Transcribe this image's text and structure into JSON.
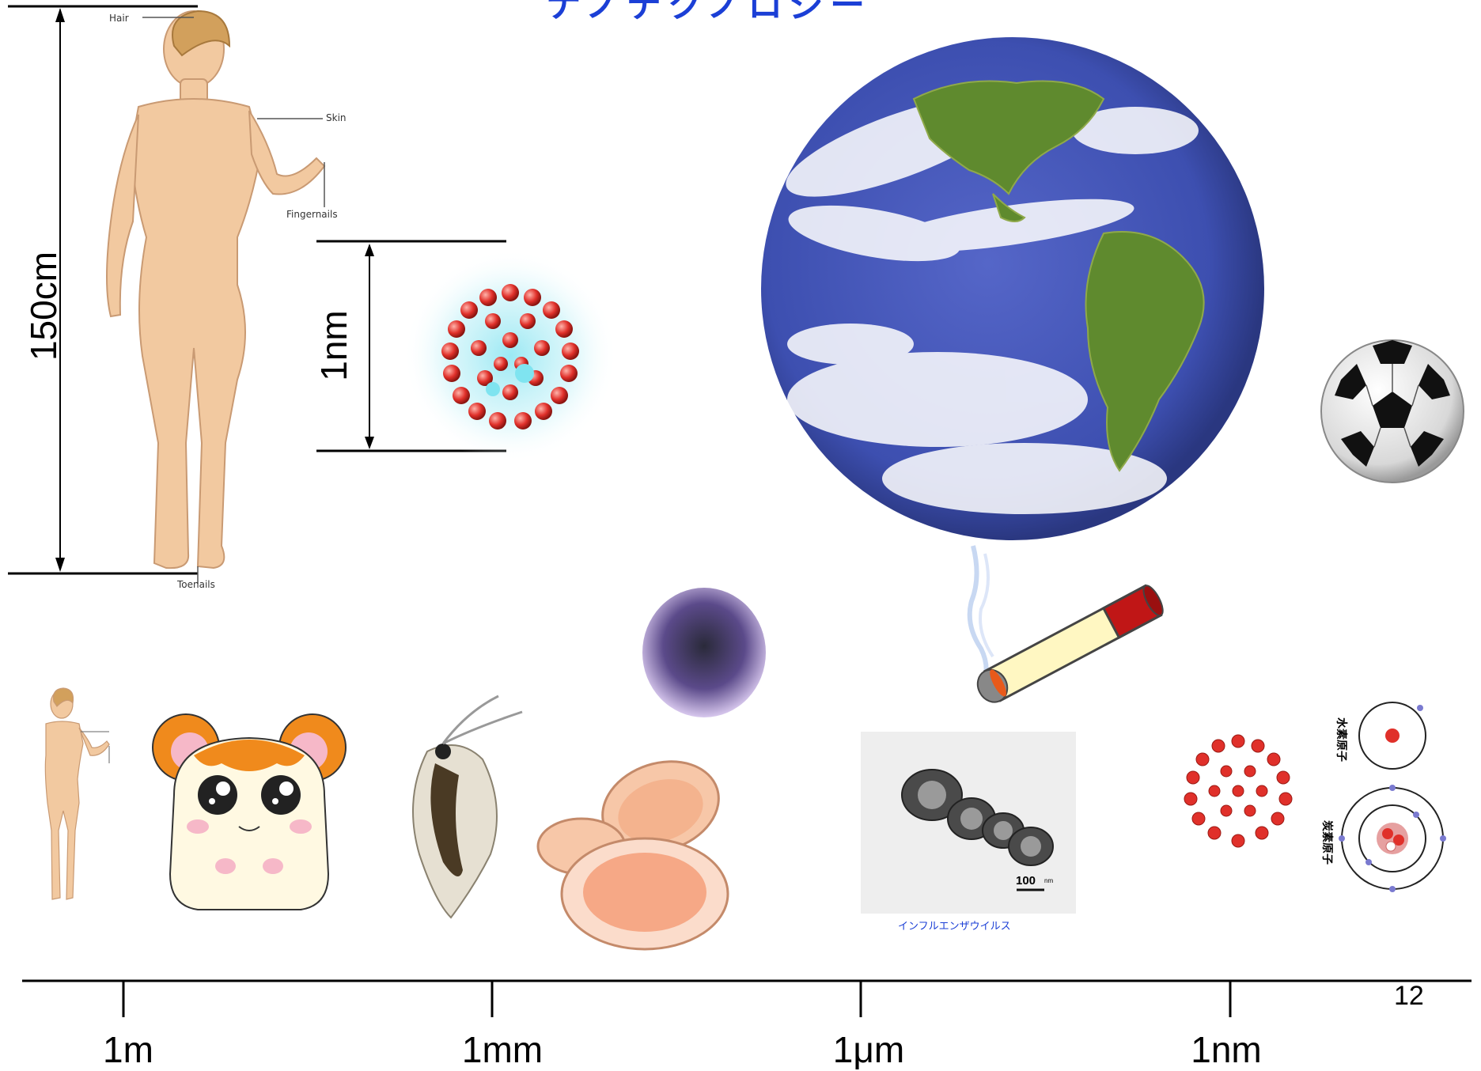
{
  "slide": {
    "page_number": "12",
    "top_title_fragment": "ナノテクノロジー"
  },
  "woman": {
    "height_label": "150cm",
    "annotations": {
      "hair": "Hair",
      "skin": "Skin",
      "fingernails": "Fingernails",
      "toenails": "Toenails"
    }
  },
  "fullerene": {
    "size_label": "1nm"
  },
  "virus": {
    "scale_bar": "100",
    "scale_unit": "nm",
    "caption": "インフルエンザウイルス"
  },
  "atoms": {
    "hydrogen": "水素原子",
    "carbon": "炭素原子"
  },
  "scale_axis": {
    "ticks": [
      "1m",
      "1mm",
      "1μm",
      "1nm"
    ]
  },
  "colors": {
    "ocean": "#3d4fb0",
    "land": "#5f8a2e",
    "title_blue": "#1b3fd6",
    "fullerene_red": "#e0302a",
    "hamster_orange": "#f08a1c"
  }
}
